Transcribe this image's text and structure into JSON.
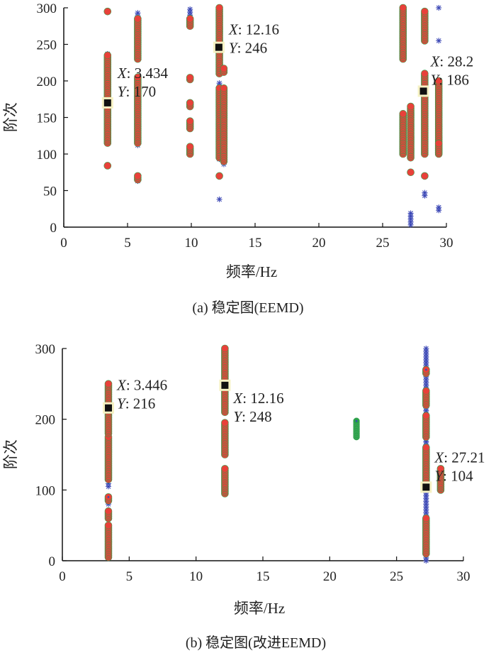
{
  "chart_data": [
    {
      "type": "scatter",
      "title": "",
      "caption": "(a) 稳定图(EEMD)",
      "xlabel": "频率/Hz",
      "ylabel": "阶次",
      "xlim": [
        0,
        30
      ],
      "ylim": [
        0,
        300
      ],
      "xticks": [
        "0",
        "5",
        "10",
        "15",
        "20",
        "25",
        "30"
      ],
      "yticks": [
        "0",
        "50",
        "100",
        "150",
        "200",
        "250",
        "300"
      ],
      "grid": false,
      "colors": {
        "stable": "#e8413a",
        "unstable": "#3b47b5",
        "frequency_stable": "#2aa04a",
        "datatip": "#111111",
        "datatip_halo": "#f6f2c4"
      },
      "clusters": [
        {
          "x": 3.434,
          "stable": [
            [
              115,
              235
            ],
            [
              295,
              295
            ],
            [
              84,
              84
            ]
          ],
          "unstable": [
            [
              225,
              238
            ]
          ]
        },
        {
          "x": 5.8,
          "stable": [
            [
              230,
              285
            ],
            [
              115,
              205
            ],
            [
              65,
              72
            ]
          ],
          "unstable": [
            [
              285,
              295
            ],
            [
              112,
              114
            ],
            [
              63,
              66
            ]
          ]
        },
        {
          "x": 9.9,
          "stable": [
            [
              275,
              285
            ],
            [
              202,
              206
            ],
            [
              165,
              172
            ],
            [
              135,
              145
            ],
            [
              100,
              110
            ]
          ],
          "unstable": [
            [
              278,
              298
            ]
          ]
        },
        {
          "x": 12.2,
          "stable": [
            [
              210,
              300
            ],
            [
              95,
              190
            ],
            [
              70,
              71
            ]
          ],
          "unstable": [
            [
              38,
              38
            ],
            [
              93,
              95
            ],
            [
              193,
              198
            ]
          ]
        },
        {
          "x": 12.55,
          "stable": [
            [
              90,
              190
            ],
            [
              212,
              218
            ]
          ],
          "unstable": [
            [
              86,
              90
            ]
          ]
        },
        {
          "x": 26.6,
          "stable": [
            [
              230,
              300
            ],
            [
              100,
              155
            ]
          ],
          "unstable": []
        },
        {
          "x": 27.2,
          "stable": [
            [
              95,
              165
            ],
            [
              75,
              77
            ]
          ],
          "unstable": [
            [
              3,
              20
            ]
          ]
        },
        {
          "x": 28.3,
          "stable": [
            [
              100,
              210
            ],
            [
              255,
              295
            ],
            [
              70,
              72
            ]
          ],
          "unstable": [
            [
              43,
              48
            ],
            [
              258,
              260
            ],
            [
              140,
              143
            ]
          ]
        },
        {
          "x": 29.4,
          "stable": [
            [
              100,
              200
            ],
            [
              102,
              115
            ]
          ],
          "unstable": [
            [
              300,
              300
            ],
            [
              255,
              255
            ],
            [
              23,
              27
            ]
          ]
        }
      ],
      "datatips": [
        {
          "x": 3.434,
          "y": 170,
          "x_label": "X",
          "x_text": ": 3.434",
          "y_label": "Y",
          "y_text": ": 170"
        },
        {
          "x": 12.16,
          "y": 246,
          "x_label": "X",
          "x_text": ": 12.16",
          "y_label": "Y",
          "y_text": ": 246"
        },
        {
          "x": 28.2,
          "y": 186,
          "x_label": "X",
          "x_text": ": 28.2",
          "y_label": "Y",
          "y_text": ": 186"
        }
      ]
    },
    {
      "type": "scatter",
      "title": "",
      "caption": "(b) 稳定图(改进EEMD)",
      "xlabel": "频率/Hz",
      "ylabel": "阶次",
      "xlim": [
        0,
        30
      ],
      "ylim": [
        0,
        300
      ],
      "xticks": [
        "0",
        "5",
        "10",
        "15",
        "20",
        "25",
        "30"
      ],
      "yticks": [
        "0",
        "100",
        "200",
        "300"
      ],
      "grid": false,
      "colors": {
        "stable": "#e8413a",
        "unstable": "#3b47b5",
        "frequency_stable": "#2aa04a",
        "datatip": "#111111",
        "datatip_halo": "#f6f2c4"
      },
      "clusters": [
        {
          "x": 3.446,
          "stable": [
            [
              5,
              50
            ],
            [
              60,
              70
            ],
            [
              85,
              90
            ],
            [
              115,
              175
            ],
            [
              180,
              250
            ]
          ],
          "unstable": [
            [
              185,
              200
            ],
            [
              105,
              112
            ],
            [
              80,
              85
            ]
          ]
        },
        {
          "x": 12.16,
          "stable": [
            [
              95,
              130
            ],
            [
              150,
              195
            ],
            [
              210,
              300
            ]
          ],
          "unstable": [
            [
              94,
              96
            ]
          ]
        },
        {
          "x": 22.0,
          "stable": [],
          "unstable": [],
          "freq_stable": [
            [
              175,
              198
            ]
          ]
        },
        {
          "x": 27.21,
          "stable": [
            [
              10,
              60
            ],
            [
              105,
              160
            ],
            [
              175,
              205
            ],
            [
              220,
              240
            ],
            [
              265,
              270
            ]
          ],
          "unstable": [
            [
              0,
              300
            ]
          ]
        },
        {
          "x": 28.3,
          "stable": [
            [
              100,
              130
            ]
          ],
          "unstable": []
        }
      ],
      "datatips": [
        {
          "x": 3.446,
          "y": 216,
          "x_label": "X",
          "x_text": ": 3.446",
          "y_label": "Y",
          "y_text": ": 216"
        },
        {
          "x": 12.16,
          "y": 248,
          "x_label": "X",
          "x_text": ": 12.16",
          "y_label": "Y",
          "y_text": ": 248"
        },
        {
          "x": 27.21,
          "y": 104,
          "x_label": "X",
          "x_text": ": 27.21",
          "y_label": "Y",
          "y_text": ": 104"
        }
      ]
    }
  ]
}
